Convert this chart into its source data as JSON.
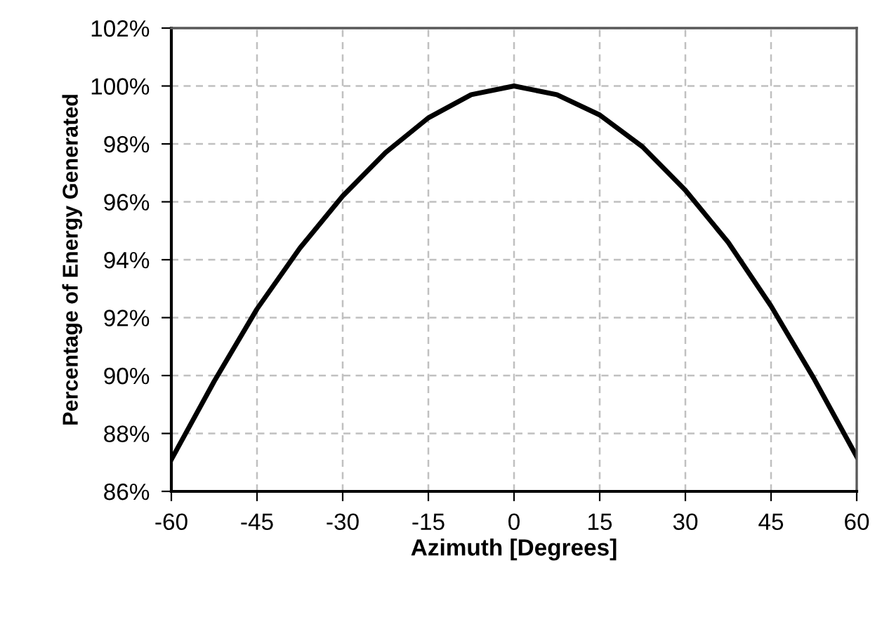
{
  "chart_data": {
    "type": "line",
    "xlabel": "Azimuth [Degrees]",
    "ylabel": "Percentage of Energy Generated",
    "x": [
      -60,
      -52.5,
      -45,
      -37.5,
      -30,
      -22.5,
      -15,
      -7.5,
      0,
      7.5,
      15,
      22.5,
      30,
      37.5,
      45,
      52.5,
      60
    ],
    "series": [
      {
        "color": "#000000",
        "values": [
          87.1,
          89.8,
          92.3,
          94.4,
          96.2,
          97.7,
          98.9,
          99.7,
          100,
          99.7,
          99.0,
          97.9,
          96.4,
          94.6,
          92.4,
          89.9,
          87.2
        ]
      }
    ],
    "xlim": [
      -60,
      60
    ],
    "xticks": [
      -60,
      -45,
      -30,
      -15,
      0,
      15,
      30,
      45,
      60
    ],
    "ylim": [
      86,
      102
    ],
    "yticks": [
      {
        "value": 86,
        "label": "86%"
      },
      {
        "value": 88,
        "label": "88%"
      },
      {
        "value": 90,
        "label": "90%"
      },
      {
        "value": 92,
        "label": "92%"
      },
      {
        "value": 94,
        "label": "94%"
      },
      {
        "value": 96,
        "label": "96%"
      },
      {
        "value": 98,
        "label": "98%"
      },
      {
        "value": 100,
        "label": "100%"
      },
      {
        "value": 102,
        "label": "102%"
      }
    ],
    "grid": true,
    "marker": "none",
    "line_style": "solid"
  }
}
